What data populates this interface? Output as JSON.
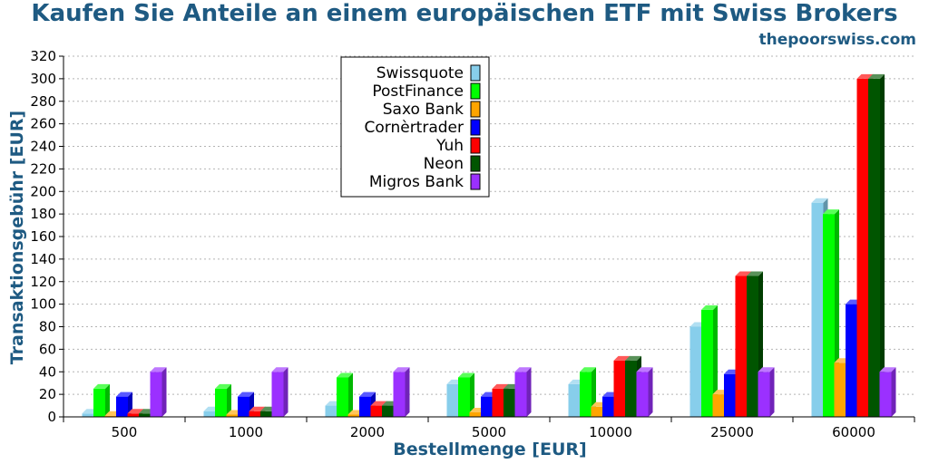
{
  "header": {
    "title": "Kaufen Sie Anteile an einem europäischen ETF mit Swiss Brokers",
    "site": "thepoorswiss.com"
  },
  "chart_data": {
    "type": "bar",
    "xlabel": "Bestellmenge [EUR]",
    "ylabel": "Transaktionsgebühr [EUR]",
    "ylim": [
      0,
      320
    ],
    "yticks": [
      0,
      20,
      40,
      60,
      80,
      100,
      120,
      140,
      160,
      180,
      200,
      220,
      240,
      260,
      280,
      300,
      320
    ],
    "grid": true,
    "legend_position": "top-center",
    "categories": [
      "500",
      "1000",
      "2000",
      "5000",
      "10000",
      "25000",
      "60000"
    ],
    "series": [
      {
        "name": "Swissquote",
        "color": "#87ceeb",
        "values": [
          3,
          5,
          10,
          29,
          29,
          80,
          190
        ]
      },
      {
        "name": "PostFinance",
        "color": "#00ff00",
        "values": [
          25,
          25,
          35,
          35,
          40,
          95,
          180
        ]
      },
      {
        "name": "Saxo Bank",
        "color": "#ffa500",
        "values": [
          1,
          2,
          2,
          4,
          9,
          20,
          48
        ]
      },
      {
        "name": "Cornèrtrader",
        "color": "#0000ff",
        "values": [
          18,
          18,
          18,
          18,
          18,
          38,
          100
        ]
      },
      {
        "name": "Yuh",
        "color": "#ff0000",
        "values": [
          3,
          5,
          10,
          25,
          50,
          125,
          300
        ]
      },
      {
        "name": "Neon",
        "color": "#005500",
        "values": [
          3,
          5,
          10,
          25,
          50,
          125,
          300
        ]
      },
      {
        "name": "Migros Bank",
        "color": "#9b30ff",
        "values": [
          40,
          40,
          40,
          40,
          40,
          40,
          40
        ]
      }
    ]
  }
}
